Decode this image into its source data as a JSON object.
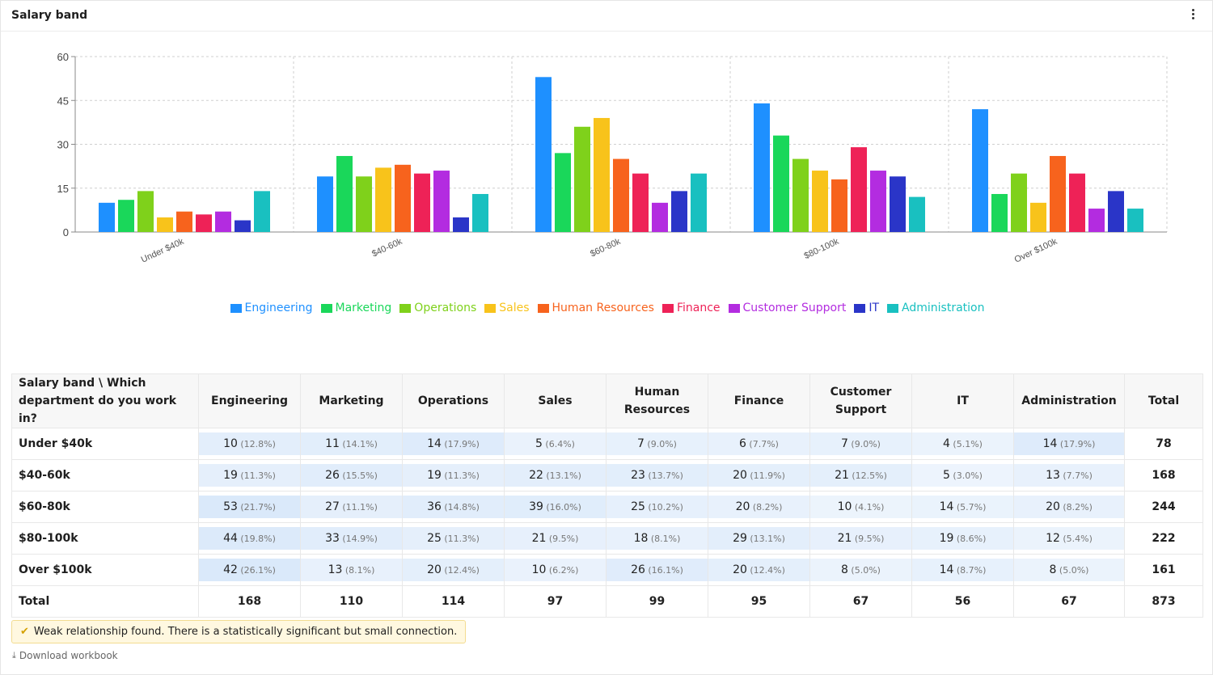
{
  "header": {
    "title": "Salary band"
  },
  "chart_data": {
    "type": "bar",
    "categories": [
      "Under $40k",
      "$40-60k",
      "$60-80k",
      "$80-100k",
      "Over $100k"
    ],
    "series": [
      {
        "name": "Engineering",
        "color": "#1e90ff",
        "values": [
          10,
          19,
          53,
          44,
          42
        ]
      },
      {
        "name": "Marketing",
        "color": "#1ad75a",
        "values": [
          11,
          26,
          27,
          33,
          13
        ]
      },
      {
        "name": "Operations",
        "color": "#7fd11b",
        "values": [
          14,
          19,
          36,
          25,
          20
        ]
      },
      {
        "name": "Sales",
        "color": "#f8c31b",
        "values": [
          5,
          22,
          39,
          21,
          10
        ]
      },
      {
        "name": "Human Resources",
        "color": "#f7631d",
        "values": [
          7,
          23,
          25,
          18,
          26
        ]
      },
      {
        "name": "Finance",
        "color": "#ee2257",
        "values": [
          6,
          20,
          20,
          29,
          20
        ]
      },
      {
        "name": "Customer Support",
        "color": "#b32ce0",
        "values": [
          7,
          21,
          10,
          21,
          8
        ]
      },
      {
        "name": "IT",
        "color": "#2a35c8",
        "values": [
          4,
          5,
          14,
          19,
          14
        ]
      },
      {
        "name": "Administration",
        "color": "#19c0c0",
        "values": [
          14,
          13,
          20,
          12,
          8
        ]
      }
    ],
    "yticks": [
      "0",
      "15",
      "30",
      "45",
      "60"
    ],
    "ylim": [
      0,
      60
    ],
    "grid": true,
    "legend_position": "bottom"
  },
  "table": {
    "corner_label": "Salary band \\ Which department do you work in?",
    "columns": [
      "Engineering",
      "Marketing",
      "Operations",
      "Sales",
      "Human Resources",
      "Finance",
      "Customer Support",
      "IT",
      "Administration"
    ],
    "total_label": "Total",
    "rows": [
      {
        "label": "Under $40k",
        "total": "78",
        "cells": [
          {
            "v": "10",
            "p": "(12.8%)"
          },
          {
            "v": "11",
            "p": "(14.1%)"
          },
          {
            "v": "14",
            "p": "(17.9%)"
          },
          {
            "v": "5",
            "p": "(6.4%)"
          },
          {
            "v": "7",
            "p": "(9.0%)"
          },
          {
            "v": "6",
            "p": "(7.7%)"
          },
          {
            "v": "7",
            "p": "(9.0%)"
          },
          {
            "v": "4",
            "p": "(5.1%)"
          },
          {
            "v": "14",
            "p": "(17.9%)"
          }
        ]
      },
      {
        "label": "$40-60k",
        "total": "168",
        "cells": [
          {
            "v": "19",
            "p": "(11.3%)"
          },
          {
            "v": "26",
            "p": "(15.5%)"
          },
          {
            "v": "19",
            "p": "(11.3%)"
          },
          {
            "v": "22",
            "p": "(13.1%)"
          },
          {
            "v": "23",
            "p": "(13.7%)"
          },
          {
            "v": "20",
            "p": "(11.9%)"
          },
          {
            "v": "21",
            "p": "(12.5%)"
          },
          {
            "v": "5",
            "p": "(3.0%)"
          },
          {
            "v": "13",
            "p": "(7.7%)"
          }
        ]
      },
      {
        "label": "$60-80k",
        "total": "244",
        "cells": [
          {
            "v": "53",
            "p": "(21.7%)"
          },
          {
            "v": "27",
            "p": "(11.1%)"
          },
          {
            "v": "36",
            "p": "(14.8%)"
          },
          {
            "v": "39",
            "p": "(16.0%)"
          },
          {
            "v": "25",
            "p": "(10.2%)"
          },
          {
            "v": "20",
            "p": "(8.2%)"
          },
          {
            "v": "10",
            "p": "(4.1%)"
          },
          {
            "v": "14",
            "p": "(5.7%)"
          },
          {
            "v": "20",
            "p": "(8.2%)"
          }
        ]
      },
      {
        "label": "$80-100k",
        "total": "222",
        "cells": [
          {
            "v": "44",
            "p": "(19.8%)"
          },
          {
            "v": "33",
            "p": "(14.9%)"
          },
          {
            "v": "25",
            "p": "(11.3%)"
          },
          {
            "v": "21",
            "p": "(9.5%)"
          },
          {
            "v": "18",
            "p": "(8.1%)"
          },
          {
            "v": "29",
            "p": "(13.1%)"
          },
          {
            "v": "21",
            "p": "(9.5%)"
          },
          {
            "v": "19",
            "p": "(8.6%)"
          },
          {
            "v": "12",
            "p": "(5.4%)"
          }
        ]
      },
      {
        "label": "Over $100k",
        "total": "161",
        "cells": [
          {
            "v": "42",
            "p": "(26.1%)"
          },
          {
            "v": "13",
            "p": "(8.1%)"
          },
          {
            "v": "20",
            "p": "(12.4%)"
          },
          {
            "v": "10",
            "p": "(6.2%)"
          },
          {
            "v": "26",
            "p": "(16.1%)"
          },
          {
            "v": "20",
            "p": "(12.4%)"
          },
          {
            "v": "8",
            "p": "(5.0%)"
          },
          {
            "v": "14",
            "p": "(8.7%)"
          },
          {
            "v": "8",
            "p": "(5.0%)"
          }
        ]
      }
    ],
    "totals_row": {
      "label": "Total",
      "values": [
        "168",
        "110",
        "114",
        "97",
        "99",
        "95",
        "67",
        "56",
        "67"
      ],
      "grand_total": "873"
    }
  },
  "notice": {
    "icon": "check-icon",
    "text": "Weak relationship found. There is a statistically significant but small connection."
  },
  "download": {
    "icon": "download-icon",
    "label": "Download workbook"
  }
}
